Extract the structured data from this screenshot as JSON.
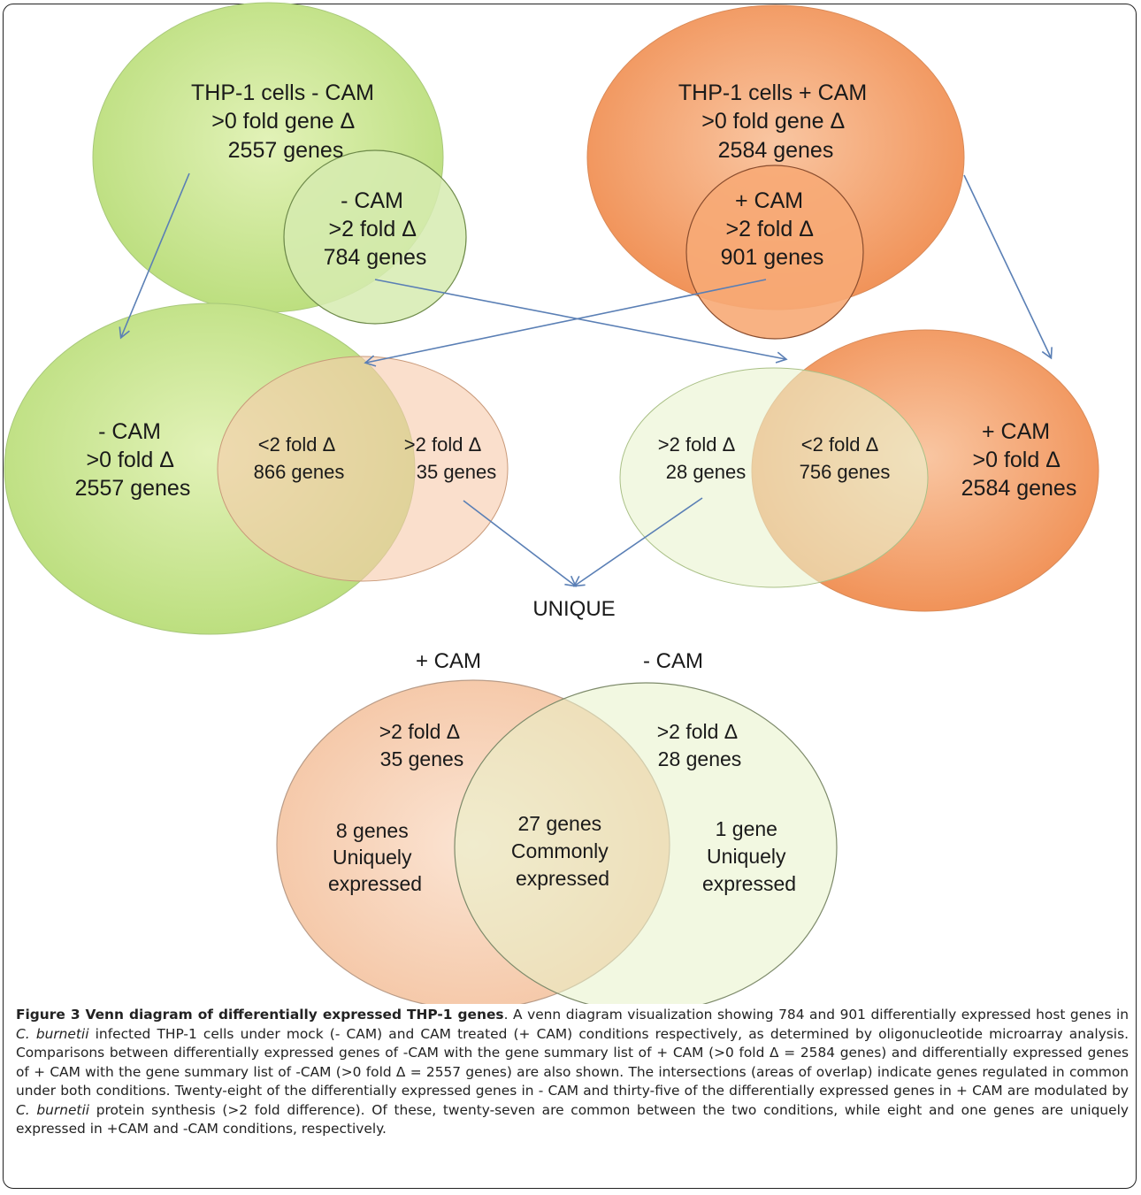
{
  "diagram": {
    "top_left": {
      "lines": [
        "THP-1 cells - CAM",
        ">0 fold gene Δ",
        "2557 genes"
      ]
    },
    "top_left_inner": {
      "lines": [
        "- CAM",
        ">2 fold Δ",
        "784 genes"
      ]
    },
    "top_right": {
      "lines": [
        "THP-1 cells + CAM",
        ">0 fold gene Δ",
        "2584 genes"
      ]
    },
    "top_right_inner": {
      "lines": [
        "+ CAM",
        ">2 fold Δ",
        "901 genes"
      ]
    },
    "mid_left_big": {
      "lines": [
        "- CAM",
        ">0 fold Δ",
        "2557 genes"
      ]
    },
    "mid_left_overlap": {
      "lines": [
        "<2 fold Δ",
        "866 genes"
      ]
    },
    "mid_left_small": {
      "lines": [
        ">2 fold Δ",
        "35 genes"
      ]
    },
    "mid_right_small": {
      "lines": [
        ">2 fold Δ",
        "28 genes"
      ]
    },
    "mid_right_overlap": {
      "lines": [
        "<2 fold Δ",
        "756 genes"
      ]
    },
    "mid_right_big": {
      "lines": [
        "+ CAM",
        ">0 fold Δ",
        "2584 genes"
      ]
    },
    "unique_label": "UNIQUE",
    "bottom_left_title": "+ CAM",
    "bottom_right_title": "- CAM",
    "bottom_left_header": {
      "lines": [
        ">2 fold Δ",
        "35 genes"
      ]
    },
    "bottom_right_header": {
      "lines": [
        ">2 fold Δ",
        "28 genes"
      ]
    },
    "bottom_left_only": {
      "lines": [
        "8 genes",
        "Uniquely",
        "expressed"
      ]
    },
    "bottom_overlap": {
      "lines": [
        "27 genes",
        "Commonly",
        "expressed"
      ]
    },
    "bottom_right_only": {
      "lines": [
        "1 gene",
        "Uniquely",
        "expressed"
      ]
    },
    "colors": {
      "green_fill": "#c6e48b",
      "orange_fill": "#f5a06a",
      "light_orange_fill": "#f8d3b8",
      "light_green_fill": "#e8f3c9",
      "arrow": "#5a7fb5"
    }
  },
  "caption": {
    "title": "Figure 3 Venn diagram of differentially expressed THP-1 genes",
    "text_1": ". A venn diagram visualization showing 784 and 901 differentially expressed host genes in ",
    "italic_1": "C. burnetii",
    "text_2": " infected THP-1 cells under mock (- CAM) and CAM treated (+ CAM) conditions respectively, as determined by oligonucleotide microarray analysis. Comparisons between differentially expressed genes of -CAM with the gene summary list of + CAM (>0 fold Δ = 2584 genes) and differentially expressed genes of + CAM with the gene summary list of -CAM (>0 fold Δ = 2557 genes) are also shown. The intersections (areas of overlap) indicate genes regulated in common under both conditions. Twenty-eight of the differentially expressed genes in - CAM and thirty-five of the differentially expressed genes in + CAM are modulated by ",
    "italic_2": "C. burnetii",
    "text_3": " protein synthesis (>2 fold difference). Of these, twenty-seven are common between the two conditions, while eight and one genes are uniquely expressed in +CAM and -CAM conditions, respectively."
  }
}
